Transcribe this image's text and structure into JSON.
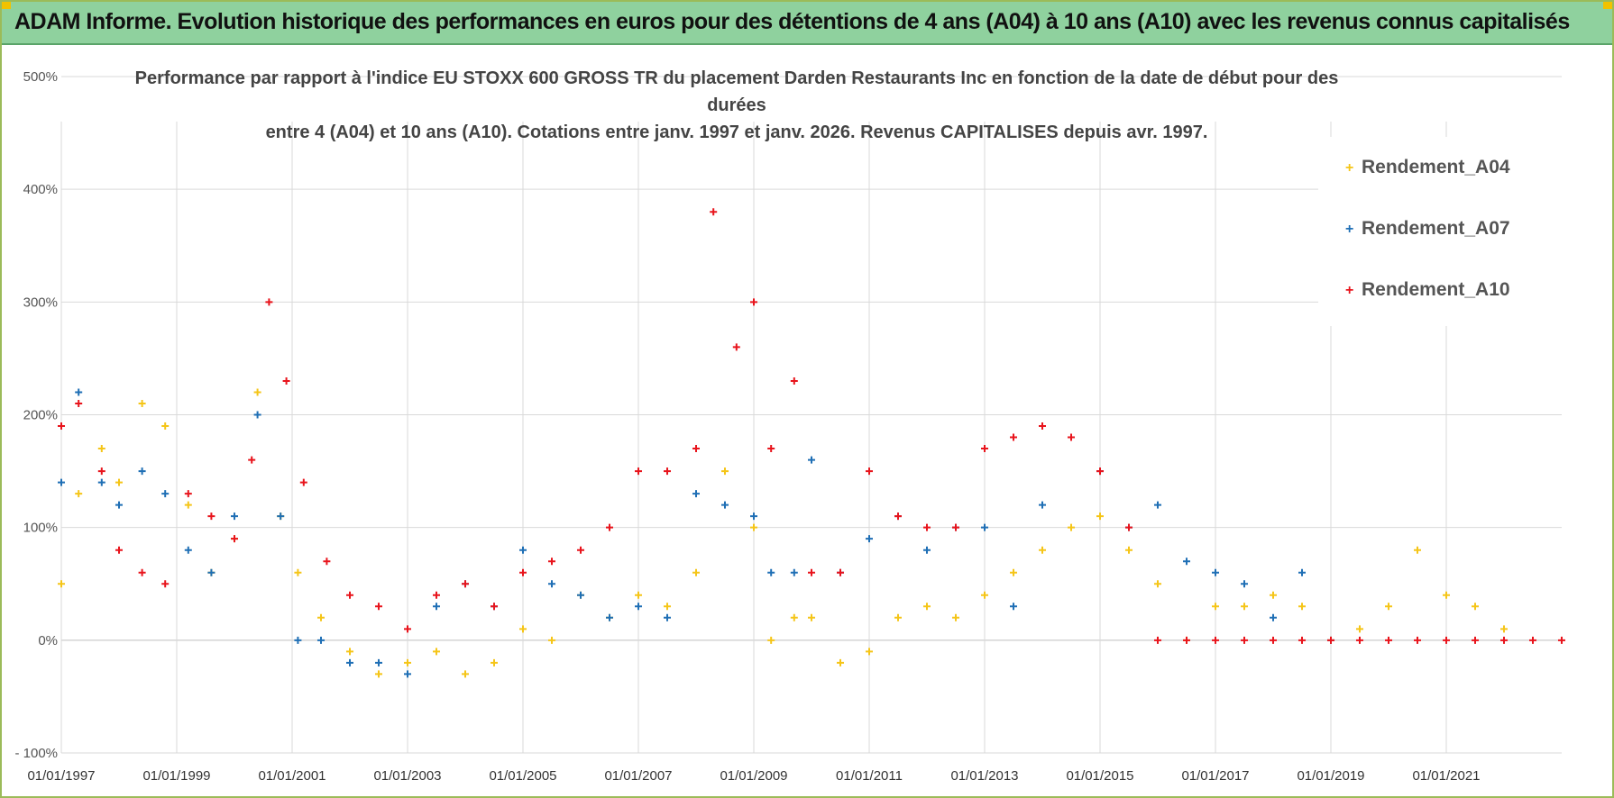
{
  "header": {
    "title": "ADAM Informe. Evolution historique des performances en euros pour des détentions de 4 ans (A04) à 10 ans (A10) avec les revenus connus capitalisés"
  },
  "colors": {
    "A04": "#f5c518",
    "A07": "#1f6fb5",
    "A10": "#e8141c",
    "grid": "#d9d9d9"
  },
  "chart_data": {
    "type": "scatter",
    "title_line1": "Performance par rapport à l'indice EU STOXX 600 GROSS TR  du placement Darden Restaurants Inc en fonction de la date de début pour des durées",
    "title_line2": "entre 4 (A04) et 10 ans (A10).  Cotations entre janv. 1997 et janv. 2026. Revenus CAPITALISES depuis avr. 1997.",
    "xlabel": "",
    "ylabel": "",
    "xlim": [
      1997.0,
      2023.0
    ],
    "ylim": [
      -100,
      500
    ],
    "y_ticks": [
      "500%",
      "400%",
      "300%",
      "200%",
      "100%",
      "0%",
      "- 100%"
    ],
    "y_tick_values": [
      500,
      400,
      300,
      200,
      100,
      0,
      -100
    ],
    "x_ticks": [
      "01/01/1997",
      "01/01/1999",
      "01/01/2001",
      "01/01/2003",
      "01/01/2005",
      "01/01/2007",
      "01/01/2009",
      "01/01/2011",
      "01/01/2013",
      "01/01/2015",
      "01/01/2017",
      "01/01/2019",
      "01/01/2021"
    ],
    "x_tick_values": [
      1997,
      1999,
      2001,
      2003,
      2005,
      2007,
      2009,
      2011,
      2013,
      2015,
      2017,
      2019,
      2021
    ],
    "legend": [
      "Rendement_A04",
      "Rendement_A07",
      "Rendement_A10"
    ],
    "series": [
      {
        "name": "Rendement_A04",
        "x": [
          1997.0,
          1997.3,
          1997.7,
          1998.0,
          1998.4,
          1998.8,
          1999.2,
          1999.6,
          2000.0,
          2000.4,
          2000.8,
          2001.1,
          2001.5,
          2002.0,
          2002.5,
          2003.0,
          2003.5,
          2004.0,
          2004.5,
          2005.0,
          2005.5,
          2006.0,
          2006.5,
          2007.0,
          2007.5,
          2008.0,
          2008.5,
          2009.0,
          2009.3,
          2009.7,
          2010.0,
          2010.5,
          2011.0,
          2011.5,
          2012.0,
          2012.5,
          2013.0,
          2013.5,
          2014.0,
          2014.5,
          2015.0,
          2015.5,
          2016.0,
          2016.5,
          2017.0,
          2017.5,
          2018.0,
          2018.5,
          2019.0,
          2019.5,
          2020.0,
          2020.5,
          2021.0,
          2021.5,
          2022.0
        ],
        "values": [
          50,
          130,
          170,
          140,
          210,
          190,
          120,
          60,
          90,
          220,
          110,
          60,
          20,
          -10,
          -30,
          -20,
          -10,
          -30,
          -20,
          10,
          0,
          40,
          20,
          40,
          30,
          60,
          150,
          100,
          0,
          20,
          20,
          -20,
          -10,
          20,
          30,
          20,
          40,
          60,
          80,
          100,
          110,
          80,
          50,
          0,
          30,
          30,
          40,
          30,
          0,
          10,
          30,
          80,
          40,
          30,
          10
        ]
      },
      {
        "name": "Rendement_A07",
        "x": [
          1997.0,
          1997.3,
          1997.7,
          1998.0,
          1998.4,
          1998.8,
          1999.2,
          1999.6,
          2000.0,
          2000.4,
          2000.8,
          2001.1,
          2001.5,
          2002.0,
          2002.5,
          2003.0,
          2003.5,
          2004.0,
          2004.5,
          2005.0,
          2005.5,
          2006.0,
          2006.5,
          2007.0,
          2007.5,
          2008.0,
          2008.5,
          2009.0,
          2009.3,
          2009.7,
          2010.0,
          2010.5,
          2011.0,
          2011.5,
          2012.0,
          2012.5,
          2013.0,
          2013.5,
          2014.0,
          2014.5,
          2015.0,
          2015.5,
          2016.0,
          2016.5,
          2017.0,
          2017.5,
          2018.0,
          2018.5,
          2019.0
        ],
        "values": [
          140,
          220,
          140,
          120,
          150,
          130,
          80,
          60,
          110,
          200,
          110,
          0,
          0,
          -20,
          -20,
          -30,
          30,
          50,
          30,
          80,
          50,
          40,
          20,
          30,
          20,
          130,
          120,
          110,
          60,
          60,
          160,
          60,
          90,
          110,
          80,
          100,
          100,
          30,
          120,
          180,
          150,
          100,
          120,
          70,
          60,
          50,
          20,
          60,
          0
        ]
      },
      {
        "name": "Rendement_A10",
        "x": [
          1997.0,
          1997.3,
          1997.7,
          1998.0,
          1998.4,
          1998.8,
          1999.2,
          1999.6,
          2000.0,
          2000.3,
          2000.6,
          2000.9,
          2001.2,
          2001.6,
          2002.0,
          2002.5,
          2003.0,
          2003.5,
          2004.0,
          2004.5,
          2005.0,
          2005.5,
          2006.0,
          2006.5,
          2007.0,
          2007.5,
          2008.0,
          2008.3,
          2008.7,
          2009.0,
          2009.3,
          2009.7,
          2010.0,
          2010.5,
          2011.0,
          2011.5,
          2012.0,
          2012.5,
          2013.0,
          2013.5,
          2014.0,
          2014.5,
          2015.0,
          2015.5,
          2016.0,
          2016.5,
          2017.0,
          2017.5,
          2018.0,
          2018.5,
          2019.0,
          2019.5,
          2020.0,
          2020.5,
          2021.0,
          2021.5,
          2022.0,
          2022.5,
          2023.0
        ],
        "values": [
          190,
          210,
          150,
          80,
          60,
          50,
          130,
          110,
          90,
          160,
          300,
          230,
          140,
          70,
          40,
          30,
          10,
          40,
          50,
          30,
          60,
          70,
          80,
          100,
          150,
          150,
          170,
          380,
          260,
          300,
          170,
          230,
          60,
          60,
          150,
          110,
          100,
          100,
          170,
          180,
          190,
          180,
          150,
          100,
          0,
          0,
          0,
          0,
          0,
          0,
          0,
          0,
          0,
          0,
          0,
          0,
          0,
          0,
          0
        ]
      }
    ]
  }
}
